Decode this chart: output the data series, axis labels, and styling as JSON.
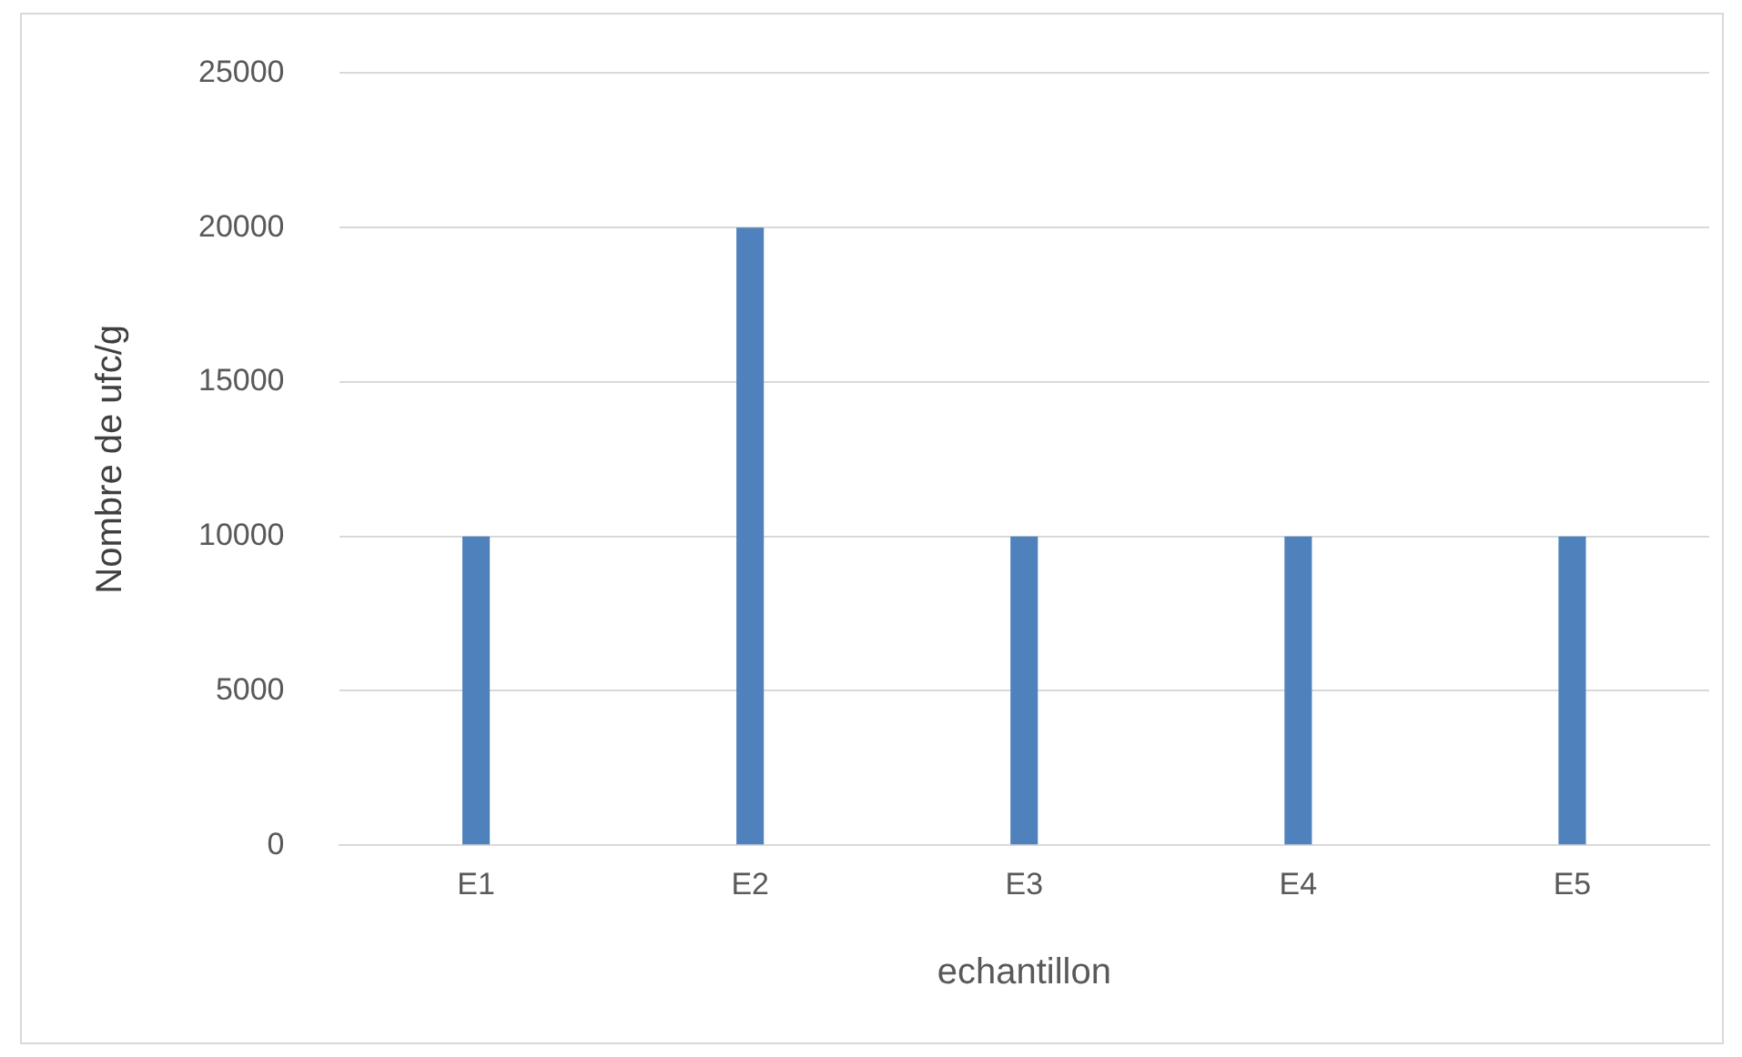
{
  "chart_data": {
    "type": "bar",
    "xlabel": "echantillon",
    "ylabel": "Nombre de ufc/g",
    "categories": [
      "E1",
      "E2",
      "E3",
      "E4",
      "E5"
    ],
    "values": [
      10000,
      20000,
      10000,
      10000,
      10000
    ],
    "color": "#4f81bd",
    "ylim": [
      0,
      25000
    ],
    "yticks": [
      0,
      5000,
      10000,
      15000,
      20000,
      25000
    ],
    "grid": "y",
    "legend": false
  }
}
